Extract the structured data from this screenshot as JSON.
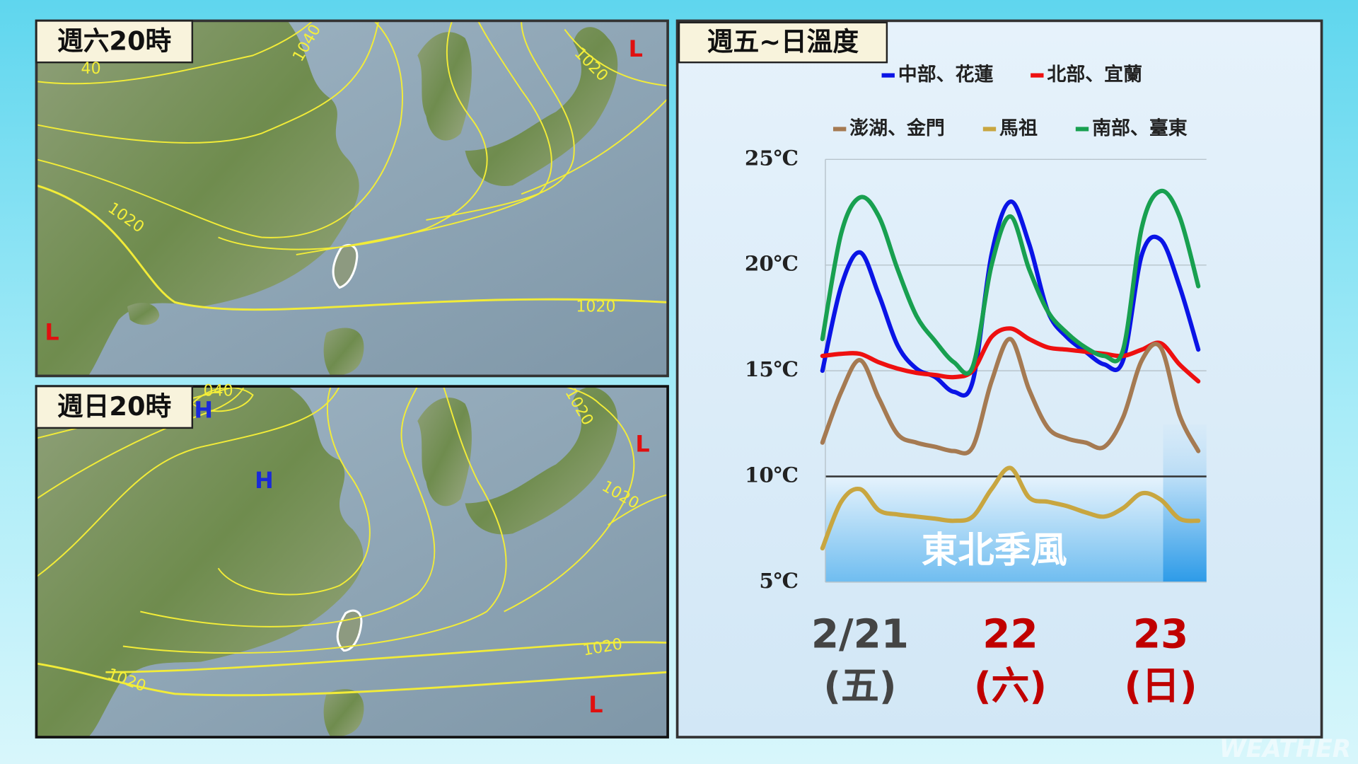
{
  "maps": [
    {
      "title": "週六20時",
      "labels": [
        "1040",
        "40",
        "1020",
        "1020",
        "1020",
        "L",
        "L"
      ]
    },
    {
      "title": "週日20時",
      "labels": [
        "040",
        "H",
        "H",
        "1020",
        "1020",
        "1020",
        "1020",
        "L",
        "L"
      ]
    }
  ],
  "watermark": "WEATHER",
  "chart_data": {
    "type": "line",
    "title": "週五~日溫度",
    "annotation": "東北季風",
    "categories": [
      null,
      null,
      "2/21",
      null,
      null,
      null,
      null,
      null,
      null,
      null,
      "22",
      null,
      null,
      null,
      null,
      null,
      null,
      null,
      "23",
      null,
      null
    ],
    "category_sublabels": [
      null,
      null,
      "(五)",
      null,
      null,
      null,
      null,
      null,
      null,
      null,
      "(六)",
      null,
      null,
      null,
      null,
      null,
      null,
      null,
      "(日)",
      null,
      null
    ],
    "category_label_colors": [
      "#444444",
      "#c00000",
      "#c00000"
    ],
    "series": [
      {
        "name": "中部、花蓮",
        "color": "#0a14e6",
        "values": [
          15.0,
          19.0,
          20.6,
          18.6,
          16.2,
          15.1,
          14.7,
          14.0,
          14.5,
          20.5,
          23.0,
          21.0,
          17.8,
          16.6,
          15.9,
          15.3,
          15.5,
          20.5,
          21.2,
          19.0,
          16.0
        ]
      },
      {
        "name": "北部、宜蘭",
        "color": "#ee1010",
        "values": [
          15.7,
          15.8,
          15.8,
          15.4,
          15.1,
          14.9,
          14.8,
          14.7,
          15.0,
          16.6,
          17.0,
          16.5,
          16.1,
          16.0,
          15.9,
          15.8,
          15.7,
          16.0,
          16.3,
          15.3,
          14.5
        ]
      },
      {
        "name": "澎湖、金門",
        "color": "#a57a52",
        "values": [
          11.6,
          14.0,
          15.5,
          13.7,
          12.0,
          11.6,
          11.4,
          11.2,
          11.4,
          14.5,
          16.5,
          14.1,
          12.3,
          11.8,
          11.6,
          11.4,
          12.8,
          15.5,
          16.1,
          12.9,
          11.2
        ]
      },
      {
        "name": "馬祖",
        "color": "#c8a640",
        "values": [
          6.6,
          8.8,
          9.4,
          8.4,
          8.2,
          8.1,
          8.0,
          7.9,
          8.1,
          9.4,
          10.4,
          9.0,
          8.8,
          8.6,
          8.3,
          8.1,
          8.5,
          9.2,
          8.9,
          8.0,
          7.9
        ]
      },
      {
        "name": "南部、臺東",
        "color": "#18a050",
        "values": [
          16.5,
          21.5,
          23.2,
          22.3,
          19.8,
          17.6,
          16.4,
          15.4,
          15.2,
          20.0,
          22.3,
          19.8,
          17.8,
          16.8,
          16.1,
          15.7,
          16.0,
          21.8,
          23.5,
          22.3,
          19.0
        ]
      }
    ],
    "ylim": [
      5,
      25
    ],
    "yticks": [
      {
        "value": 5,
        "label": "5℃"
      },
      {
        "value": 10,
        "label": "10℃"
      },
      {
        "value": 15,
        "label": "15℃"
      },
      {
        "value": 20,
        "label": "20℃"
      },
      {
        "value": 25,
        "label": "25℃"
      }
    ],
    "grid": true
  }
}
